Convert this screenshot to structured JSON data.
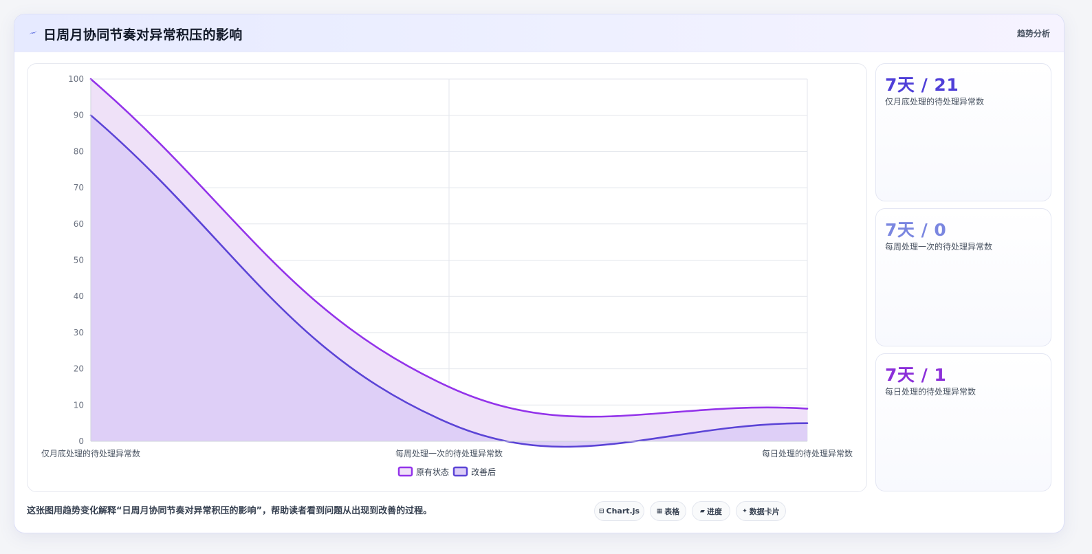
{
  "header": {
    "title": "日周月协同节奏对异常积压的影响",
    "tag": "趋势分析",
    "icon": "bolt-icon"
  },
  "colors": {
    "original": "#9333ea",
    "improved": "#5b44d6",
    "original_fill": "#efe1f8",
    "improved_fill": "#dccdf7",
    "card1_value": "#4f3fd8",
    "card2_value": "#7a86e0",
    "card3_value": "#8b2fd9"
  },
  "chart_data": {
    "type": "area",
    "categories": [
      "仅月底处理的待处理异常数",
      "每周处理一次的待处理异常数",
      "每日处理的待处理异常数"
    ],
    "series": [
      {
        "name": "原有状态",
        "values": [
          100,
          15,
          9
        ]
      },
      {
        "name": "改善后",
        "values": [
          90,
          5,
          5
        ]
      }
    ],
    "ylim": [
      0,
      100
    ],
    "yticks": [
      0,
      10,
      20,
      30,
      40,
      50,
      60,
      70,
      80,
      90,
      100
    ],
    "legend": "bottom",
    "grid": true
  },
  "side_cards": [
    {
      "value": "7天 / 21",
      "label": "仅月底处理的待处理异常数"
    },
    {
      "value": "7天 / 0",
      "label": "每周处理一次的待处理异常数"
    },
    {
      "value": "7天 / 1",
      "label": "每日处理的待处理异常数"
    }
  ],
  "footer": {
    "text": "这张图用趋势变化解释“日周月协同节奏对异常积压的影响”，帮助读者看到问题从出现到改善的过程。",
    "pills": [
      {
        "icon": "⊟",
        "label": "Chart.js"
      },
      {
        "icon": "▦",
        "label": "表格"
      },
      {
        "icon": "▰",
        "label": "进度"
      },
      {
        "icon": "✦",
        "label": "数据卡片"
      }
    ]
  }
}
